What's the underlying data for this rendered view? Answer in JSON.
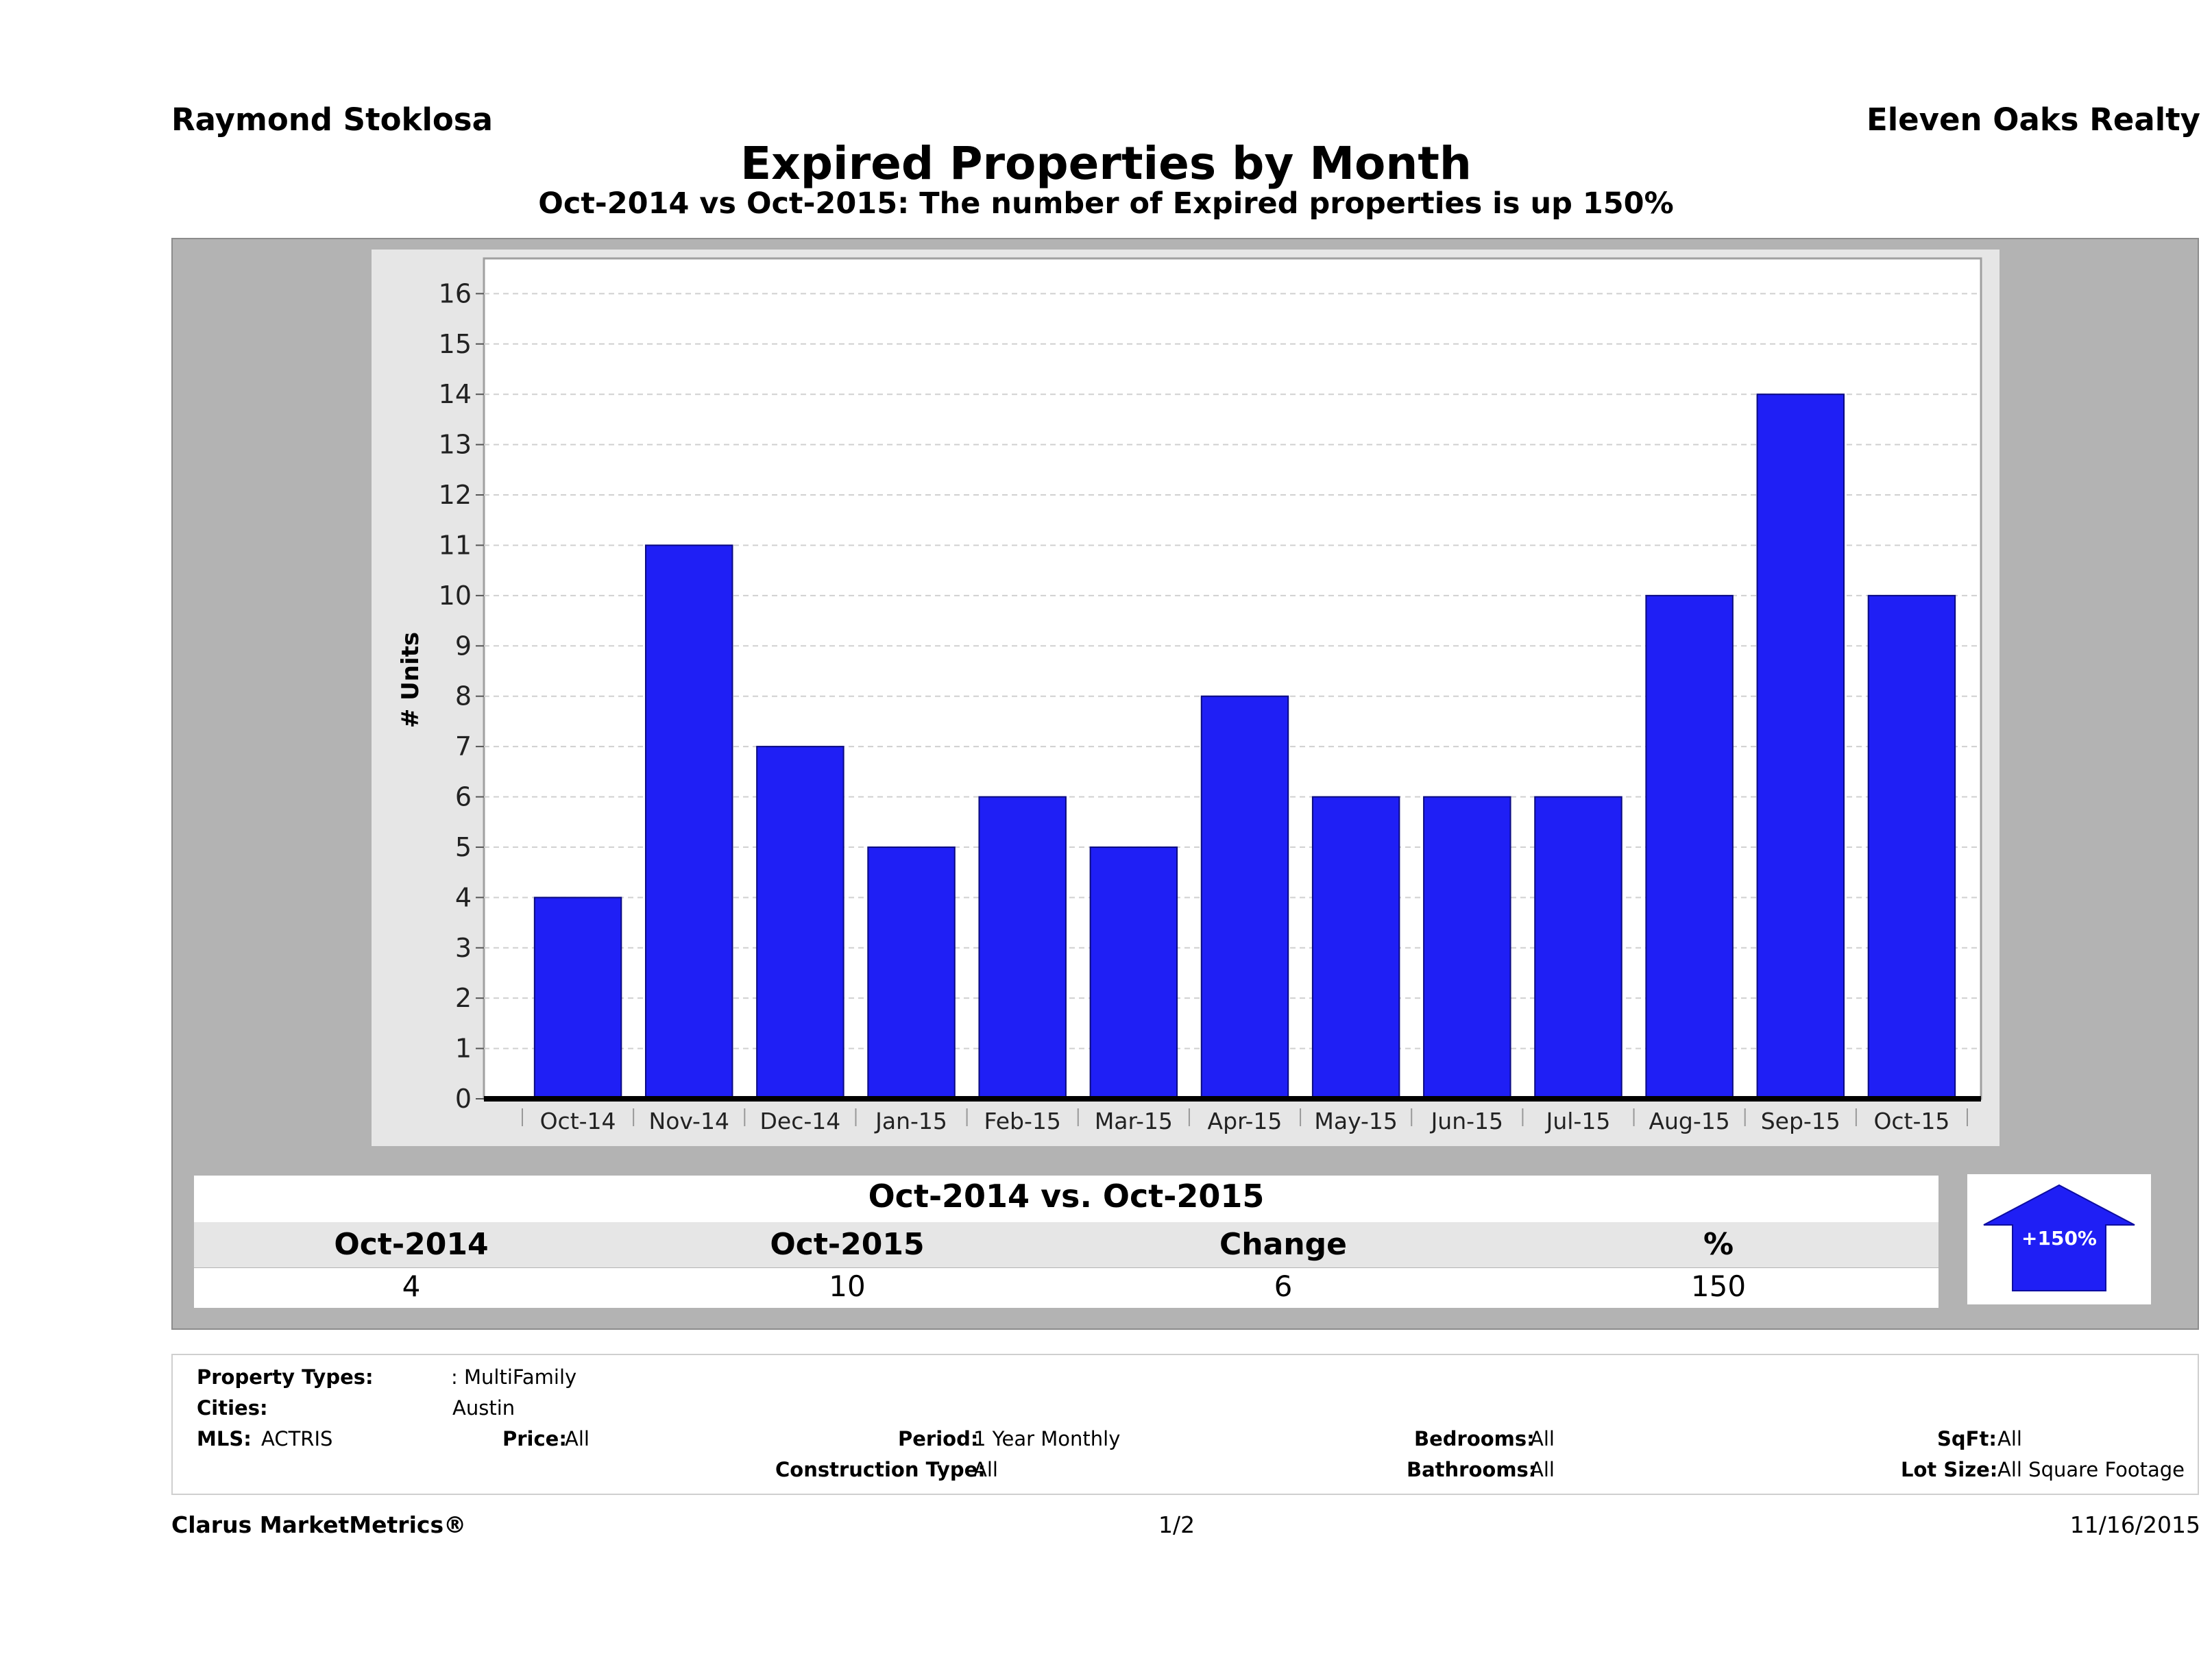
{
  "header": {
    "agent": "Raymond Stoklosa",
    "company": "Eleven Oaks Realty",
    "title": "Expired Properties by Month",
    "subtitle": "Oct-2014 vs Oct-2015: The number of Expired  properties is up 150%"
  },
  "chart_data": {
    "type": "bar",
    "categories": [
      "Oct-14",
      "Nov-14",
      "Dec-14",
      "Jan-15",
      "Feb-15",
      "Mar-15",
      "Apr-15",
      "May-15",
      "Jun-15",
      "Jul-15",
      "Aug-15",
      "Sep-15",
      "Oct-15"
    ],
    "values": [
      4,
      11,
      7,
      5,
      6,
      5,
      8,
      6,
      6,
      6,
      10,
      14,
      10
    ],
    "ylabel": "# Units",
    "xlabel": "",
    "ylim": [
      0,
      16.7
    ],
    "yticks": [
      0,
      1,
      2,
      3,
      4,
      5,
      6,
      7,
      8,
      9,
      10,
      11,
      12,
      13,
      14,
      15,
      16
    ],
    "grid": true,
    "bar_color": "#1f1ff5"
  },
  "summary": {
    "title": "Oct-2014 vs. Oct-2015",
    "headers": [
      "Oct-2014",
      "Oct-2015",
      "Change",
      "%"
    ],
    "values": [
      "4",
      "10",
      "6",
      "150"
    ],
    "arrow_label": "+150%",
    "arrow_direction": "up"
  },
  "filters": {
    "property_types_label": "Property Types:",
    "property_types_value": ": MultiFamily",
    "cities_label": "Cities:",
    "cities_value": "Austin",
    "mls_label": "MLS:",
    "mls_value": "ACTRIS",
    "price_label": "Price:",
    "price_value": "All",
    "period_label": "Period:",
    "period_value": "1 Year Monthly",
    "construction_label": "Construction Type:",
    "construction_value": "All",
    "bedrooms_label": "Bedrooms:",
    "bedrooms_value": "All",
    "bathrooms_label": "Bathrooms:",
    "bathrooms_value": "All",
    "sqft_label": "SqFt:",
    "sqft_value": "All",
    "lot_label": "Lot Size:",
    "lot_value": "All Square Footage"
  },
  "footer": {
    "brand": "Clarus MarketMetrics®",
    "page": "1/2",
    "date": "11/16/2015"
  }
}
